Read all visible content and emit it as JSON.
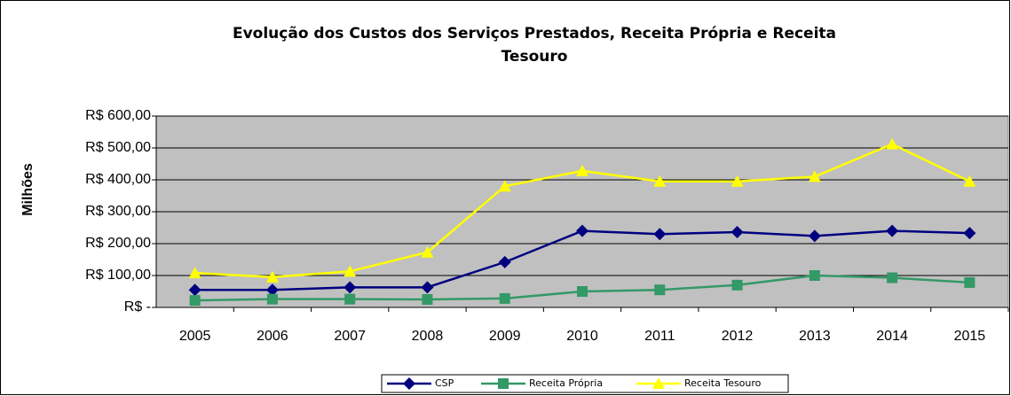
{
  "chart_data": {
    "type": "line",
    "title": [
      "Evolução dos Custos dos Serviços Prestados, Receita Própria e Receita",
      "Tesouro"
    ],
    "y_label": "Milhões",
    "categories": [
      "2005",
      "2006",
      "2007",
      "2008",
      "2009",
      "2010",
      "2011",
      "2012",
      "2013",
      "2014",
      "2015"
    ],
    "series": [
      {
        "name": "CSP",
        "color": "#000080",
        "marker": "diamond",
        "values": [
          55,
          55,
          63,
          63,
          142,
          240,
          230,
          236,
          224,
          240,
          233
        ]
      },
      {
        "name": "Receita Própria",
        "color": "#339966",
        "marker": "square",
        "values": [
          22,
          26,
          26,
          25,
          28,
          50,
          55,
          70,
          100,
          93,
          78
        ]
      },
      {
        "name": "Receita Tesouro",
        "color": "#ffff00",
        "marker": "triangle",
        "values": [
          108,
          95,
          113,
          173,
          380,
          428,
          395,
          395,
          410,
          512,
          395
        ]
      }
    ],
    "ylim": [
      0,
      600
    ],
    "yticks": [
      {
        "value": 0,
        "label": "R$ -"
      },
      {
        "value": 100,
        "label": "R$ 100,00"
      },
      {
        "value": 200,
        "label": "R$ 200,00"
      },
      {
        "value": 300,
        "label": "R$ 300,00"
      },
      {
        "value": 400,
        "label": "R$ 400,00"
      },
      {
        "value": 500,
        "label": "R$ 500,00"
      },
      {
        "value": 600,
        "label": "R$ 600,00"
      }
    ],
    "grid": true,
    "legend": "bottom"
  }
}
